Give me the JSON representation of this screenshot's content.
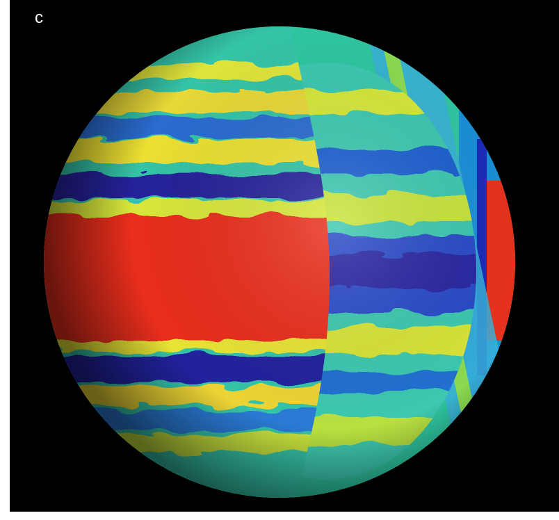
{
  "panel_label": "c"
}
